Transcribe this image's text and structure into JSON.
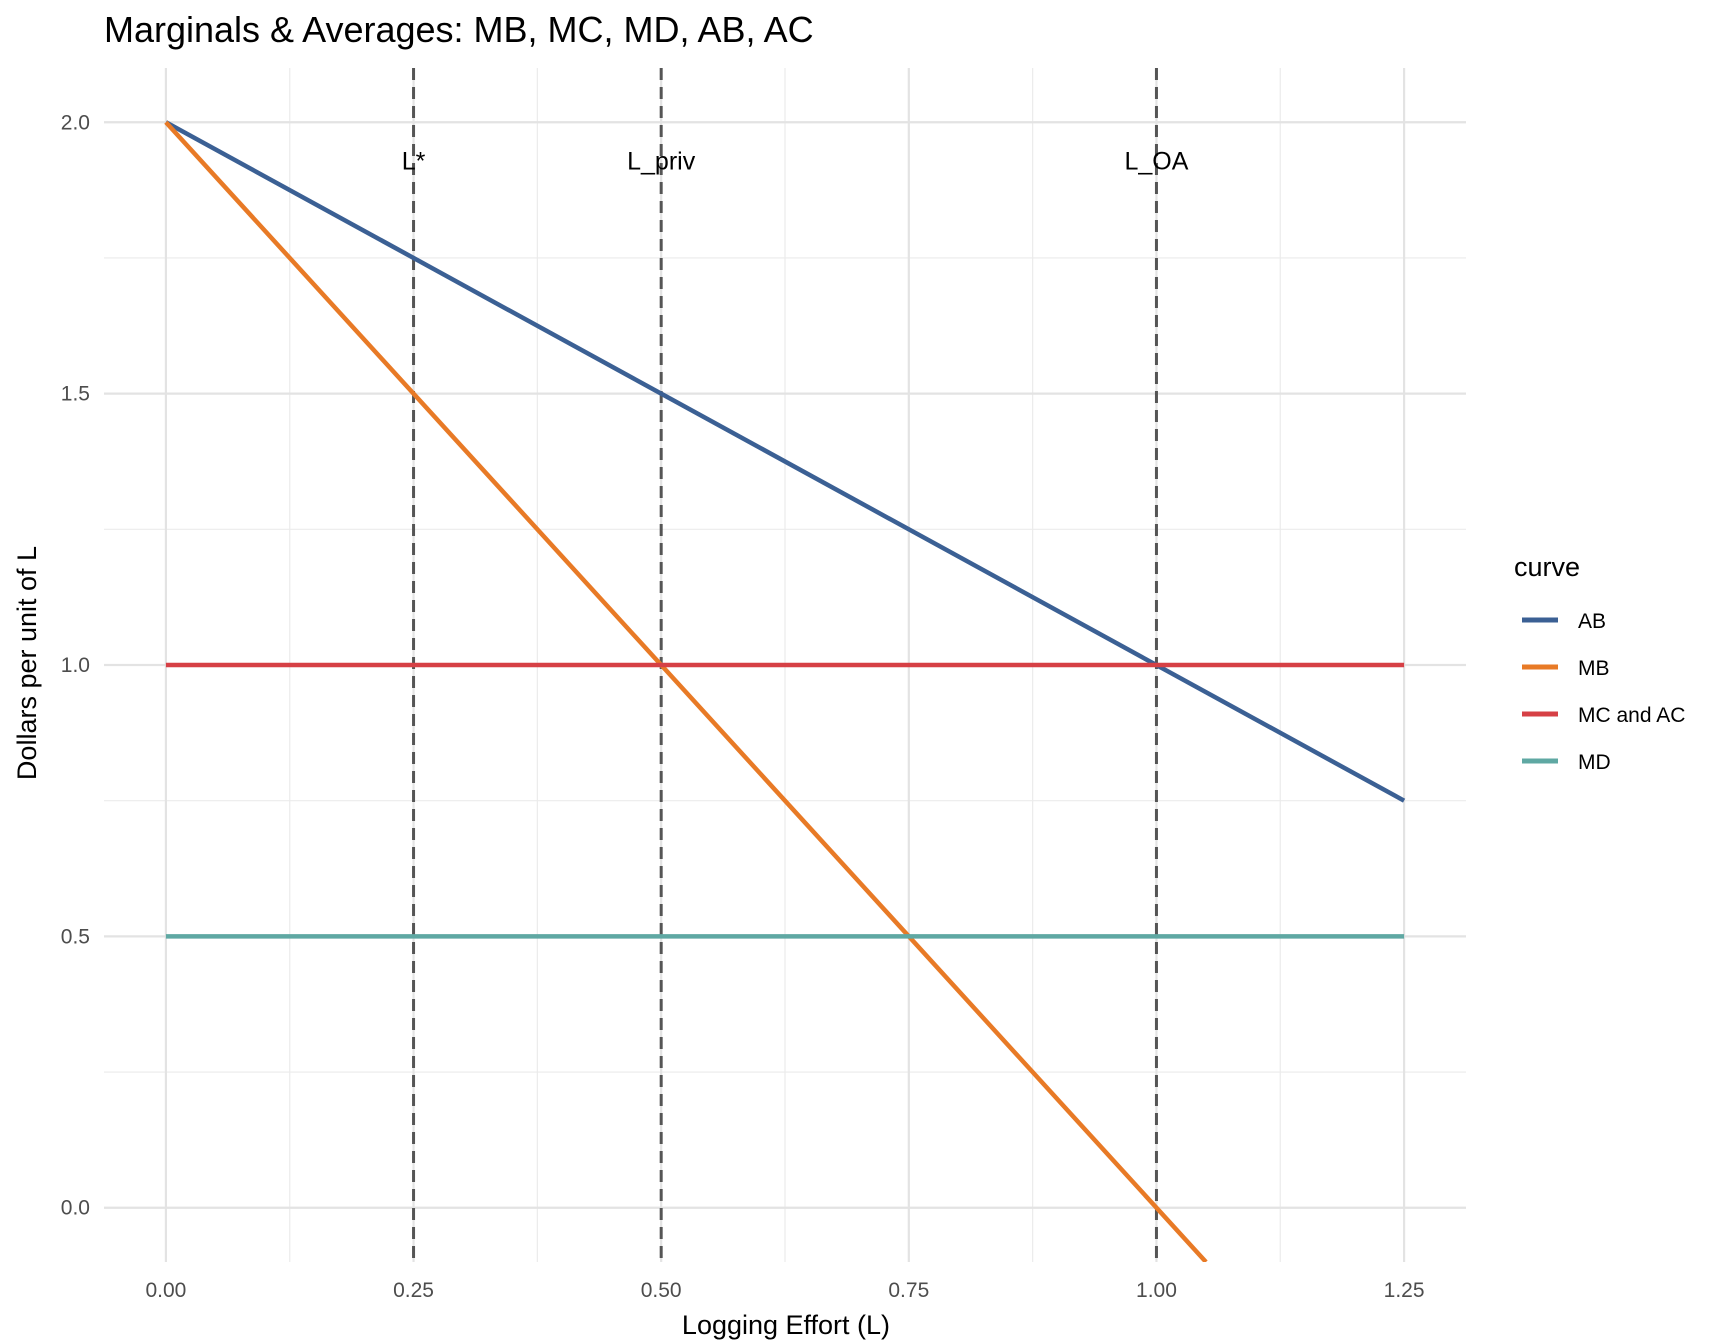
{
  "chart_data": {
    "type": "line",
    "title": "Marginals & Averages: MB, MC, MD, AB, AC",
    "xlabel": "Logging Effort (L)",
    "ylabel": "Dollars per unit of L",
    "xlim": [
      -0.0625,
      1.3125
    ],
    "ylim": [
      -0.1,
      2.1
    ],
    "x_ticks": [
      0,
      0.25,
      0.5,
      0.75,
      1.0,
      1.25
    ],
    "x_tick_labels": [
      "0.00",
      "0.25",
      "0.50",
      "0.75",
      "1.00",
      "1.25"
    ],
    "y_ticks": [
      0,
      0.5,
      1.0,
      1.5,
      2.0
    ],
    "y_tick_labels": [
      "0.0",
      "0.5",
      "1.0",
      "1.5",
      "2.0"
    ],
    "grid": true,
    "legend_title": "curve",
    "legend_position": "right",
    "series": [
      {
        "name": "AB",
        "color": "#3b6094",
        "x": [
          0,
          1.25
        ],
        "y": [
          2.0,
          0.75
        ]
      },
      {
        "name": "MB",
        "color": "#e87a26",
        "x": [
          0,
          1.05
        ],
        "y": [
          2.0,
          -0.1
        ]
      },
      {
        "name": "MC and AC",
        "color": "#d64045",
        "x": [
          0,
          1.25
        ],
        "y": [
          1.0,
          1.0
        ]
      },
      {
        "name": "MD",
        "color": "#5fa8a3",
        "x": [
          0,
          1.25
        ],
        "y": [
          0.5,
          0.5
        ]
      }
    ],
    "vlines": [
      {
        "x": 0.25,
        "label": "L*"
      },
      {
        "x": 0.5,
        "label": "L_priv"
      },
      {
        "x": 1.0,
        "label": "L_OA"
      }
    ],
    "vline_label_y": 1.93
  }
}
